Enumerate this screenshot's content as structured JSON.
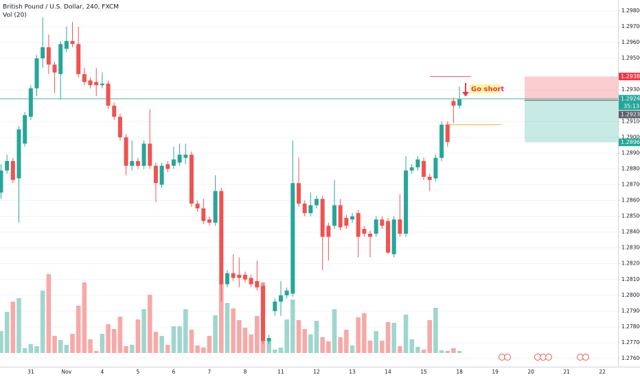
{
  "chart_data": {
    "type": "candlestick",
    "title": "British Pound / U.S. Dollar, 240, FXCM",
    "volume_label": "Vol (20)",
    "annotation": "Go short",
    "categories": [
      null,
      null,
      null,
      null,
      null,
      "31",
      null,
      null,
      null,
      null,
      null,
      "Nov",
      null,
      null,
      null,
      null,
      null,
      "4",
      null,
      null,
      null,
      null,
      null,
      "5",
      null,
      null,
      null,
      null,
      null,
      "6",
      null,
      null,
      null,
      null,
      null,
      "7",
      null,
      null,
      null,
      null,
      null,
      "8",
      null,
      null,
      null,
      null,
      null,
      "11",
      null,
      null,
      null,
      null,
      null,
      "12",
      null,
      null,
      null,
      null,
      null,
      "13",
      null,
      null,
      null,
      null,
      null,
      "14",
      null,
      null,
      null,
      null,
      null,
      "15",
      null,
      null,
      null,
      null,
      null,
      "18",
      null,
      null,
      null,
      null,
      null,
      "19",
      null,
      null,
      null,
      null,
      null,
      "20",
      null,
      null,
      null,
      null,
      null,
      "21",
      null,
      null,
      null,
      null,
      null,
      "22",
      null
    ],
    "open": [
      1.2865,
      1.2879,
      1.2885,
      1.2874,
      1.2896,
      1.2913,
      1.2931,
      1.295,
      1.2957,
      1.2946,
      1.294,
      1.2956,
      1.2961,
      1.2959,
      1.294,
      1.2936,
      1.2935,
      1.2933,
      1.2934,
      1.292,
      1.2913,
      1.29,
      1.2882,
      1.2885,
      1.2882,
      1.2896,
      1.2882,
      1.287,
      1.2883,
      1.2882,
      1.2884,
      1.2887,
      1.2889,
      1.2858,
      1.2855,
      1.2848,
      1.2846,
      1.2866,
      1.2807,
      1.2814,
      1.2813,
      1.2813,
      1.2811,
      1.2809,
      1.2806,
      1.2771,
      1.279,
      1.2796,
      1.28,
      1.2801,
      1.2871,
      1.2858,
      1.2852,
      1.2857,
      1.2861,
      1.2844,
      1.2844,
      1.2857,
      1.2849,
      1.2848,
      1.2852,
      1.2842,
      1.2839,
      1.2839,
      1.2848,
      1.2847,
      1.2826,
      1.2848,
      1.2839,
      1.2879,
      1.2881,
      1.2885,
      1.2875,
      1.2874,
      1.2887,
      1.2908,
      1.2923,
      1.292,
      null,
      null,
      null,
      null,
      null,
      null,
      null,
      null,
      null,
      null,
      null,
      null,
      null,
      null,
      null,
      null,
      null,
      null,
      null,
      null,
      null,
      null,
      null,
      null,
      null
    ],
    "high": [
      1.2883,
      1.2889,
      1.2887,
      1.2907,
      1.2916,
      1.2933,
      1.2952,
      1.2976,
      1.2965,
      1.2948,
      1.2961,
      1.297,
      1.2973,
      1.297,
      1.2944,
      1.2938,
      1.2944,
      1.2941,
      1.2936,
      1.2922,
      1.2915,
      1.2902,
      1.2898,
      1.2887,
      1.2898,
      1.2918,
      1.2884,
      1.2884,
      1.2885,
      1.2894,
      1.2896,
      1.2896,
      1.2891,
      1.286,
      1.2861,
      1.285,
      1.2876,
      1.2868,
      1.2816,
      1.2826,
      1.2824,
      1.2815,
      1.2813,
      1.2822,
      1.2808,
      1.2775,
      1.2798,
      1.2809,
      1.2805,
      1.2898,
      1.2887,
      1.286,
      1.2865,
      1.2863,
      1.2863,
      1.2846,
      1.2873,
      1.2861,
      1.2851,
      1.2852,
      1.2854,
      1.2844,
      1.2841,
      1.285,
      1.285,
      1.2849,
      1.285,
      1.2864,
      1.2888,
      1.2883,
      1.2888,
      1.2887,
      1.2877,
      1.2889,
      1.291,
      1.291,
      1.2925,
      1.2932,
      null,
      null,
      null,
      null,
      null,
      null,
      null,
      null,
      null,
      null,
      null,
      null,
      null,
      null,
      null,
      null,
      null,
      null,
      null,
      null,
      null,
      null,
      null,
      null,
      null
    ],
    "low": [
      1.2861,
      1.2877,
      1.2871,
      1.2846,
      1.2894,
      1.2911,
      1.2926,
      1.2944,
      1.294,
      1.2928,
      1.2924,
      1.2954,
      1.2957,
      1.2938,
      1.2933,
      1.2931,
      1.2926,
      1.2931,
      1.2918,
      1.2911,
      1.2898,
      1.2876,
      1.2879,
      1.288,
      1.288,
      1.288,
      1.2859,
      1.2868,
      1.2878,
      1.288,
      1.2882,
      1.2883,
      1.2856,
      1.2853,
      1.2845,
      1.2844,
      1.2844,
      1.2796,
      1.2805,
      1.2809,
      1.2805,
      1.2808,
      1.2805,
      1.2803,
      1.2769,
      1.2769,
      1.2787,
      1.2787,
      1.2798,
      1.2799,
      1.2856,
      1.285,
      1.285,
      1.2855,
      1.2816,
      1.2822,
      1.2842,
      1.2841,
      1.2842,
      1.2846,
      1.2824,
      1.2837,
      1.2824,
      1.2837,
      1.2842,
      1.2826,
      1.2824,
      1.2837,
      1.2837,
      1.2877,
      1.2879,
      1.2873,
      1.2866,
      1.2872,
      1.2885,
      1.2894,
      1.2909,
      1.2918,
      null,
      null,
      null,
      null,
      null,
      null,
      null,
      null,
      null,
      null,
      null,
      null,
      null,
      null,
      null,
      null,
      null,
      null,
      null,
      null,
      null,
      null,
      null,
      null,
      null
    ],
    "close": [
      1.2879,
      1.2885,
      1.2873,
      1.2905,
      1.2914,
      1.2931,
      1.295,
      1.2957,
      1.2946,
      1.2941,
      1.2959,
      1.2961,
      1.2959,
      1.294,
      1.2935,
      1.2933,
      1.2933,
      1.2934,
      1.292,
      1.2913,
      1.29,
      1.2882,
      1.2885,
      1.2882,
      1.2896,
      1.2882,
      1.2871,
      1.2882,
      1.288,
      1.2886,
      1.2889,
      1.2889,
      1.2858,
      1.2855,
      1.2847,
      1.2846,
      1.2866,
      1.2807,
      1.2814,
      1.2811,
      1.2811,
      1.281,
      1.2807,
      1.2805,
      1.2771,
      1.2773,
      1.2796,
      1.28,
      1.2803,
      1.2871,
      1.2858,
      1.2852,
      1.2857,
      1.2861,
      1.2837,
      1.2837,
      1.2857,
      1.2843,
      1.2844,
      1.285,
      1.2837,
      1.2839,
      1.2837,
      1.2848,
      1.2844,
      1.2827,
      1.2848,
      1.2839,
      1.2879,
      1.2881,
      1.2886,
      1.2875,
      1.2873,
      1.2887,
      1.2908,
      1.2897,
      1.292,
      1.2924,
      null,
      null,
      null,
      null,
      null,
      null,
      null,
      null,
      null,
      null,
      null,
      null,
      null,
      null,
      null,
      null,
      null,
      null,
      null,
      null,
      null,
      null,
      null,
      null,
      null
    ],
    "volume": [
      32,
      60,
      75,
      80,
      7,
      13,
      10,
      91,
      115,
      25,
      19,
      12,
      28,
      69,
      103,
      20,
      3,
      28,
      42,
      35,
      53,
      10,
      12,
      49,
      64,
      85,
      31,
      25,
      12,
      39,
      39,
      64,
      34,
      11,
      8,
      25,
      55,
      105,
      73,
      65,
      48,
      37,
      27,
      54,
      103,
      19,
      5,
      8,
      49,
      78,
      48,
      35,
      27,
      47,
      23,
      17,
      64,
      23,
      34,
      11,
      52,
      58,
      18,
      32,
      18,
      45,
      44,
      10,
      56,
      20,
      9,
      5,
      48,
      66,
      4,
      3,
      7,
      3,
      null,
      null,
      null,
      null,
      null,
      null,
      null,
      null,
      null,
      null,
      null,
      null,
      null,
      null,
      null,
      null,
      null,
      null,
      null,
      null,
      null,
      null,
      null,
      null,
      null
    ],
    "up_color": "#26a69a",
    "down_color": "#ef5350",
    "volume_up_color": "#9fd6ce",
    "volume_down_color": "#f7a9a7",
    "ylim": [
      1.27548,
      1.29869
    ],
    "volume_ylim": [
      0,
      120
    ],
    "yticks": [
      {
        "value": 1.298,
        "label": "1.29800"
      },
      {
        "value": 1.297,
        "label": "1.29700"
      },
      {
        "value": 1.296,
        "label": "1.29600"
      },
      {
        "value": 1.295,
        "label": "1.29500"
      },
      {
        "value": 1.293,
        "label": "1.29300"
      },
      {
        "value": 1.291,
        "label": "1.29100"
      },
      {
        "value": 1.29,
        "label": "1.29000"
      },
      {
        "value": 1.289,
        "label": "1.28900"
      },
      {
        "value": 1.288,
        "label": "1.28800"
      },
      {
        "value": 1.287,
        "label": "1.28700"
      },
      {
        "value": 1.286,
        "label": "1.28600"
      },
      {
        "value": 1.285,
        "label": "1.28500"
      },
      {
        "value": 1.284,
        "label": "1.28400"
      },
      {
        "value": 1.283,
        "label": "1.28300"
      },
      {
        "value": 1.282,
        "label": "1.28200"
      },
      {
        "value": 1.281,
        "label": "1.28100"
      },
      {
        "value": 1.28,
        "label": "1.28000"
      },
      {
        "value": 1.279,
        "label": "1.27900"
      },
      {
        "value": 1.278,
        "label": "1.27800"
      },
      {
        "value": 1.277,
        "label": "1.27700"
      },
      {
        "value": 1.276,
        "label": "1.27600"
      }
    ],
    "grid": true,
    "last_price": 1.29244,
    "last_price_color": "#26a69a",
    "countdown": "35:13",
    "position": {
      "stop": 1.29385,
      "entry": 1.29234,
      "target": 1.28968,
      "stop_color": "#f23645",
      "entry_color": "#5d606b",
      "target_color": "#22ab94"
    },
    "drawings": [
      {
        "price": 1.29385,
        "color": "#f7525f"
      },
      {
        "price": 1.2908,
        "color": "#f9a825"
      }
    ]
  }
}
